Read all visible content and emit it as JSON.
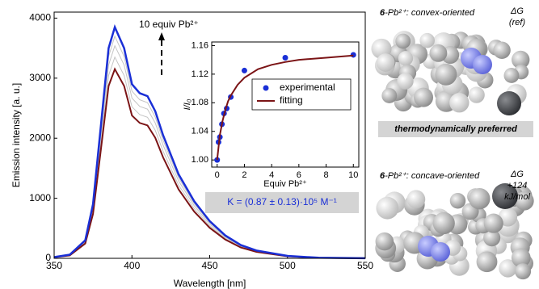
{
  "chart_data": [
    {
      "type": "line",
      "x_label": "Wavelength [nm]",
      "y_label": "Emission intensity [a. u.]",
      "x": [
        350,
        360,
        370,
        375,
        380,
        385,
        389,
        395,
        400,
        405,
        410,
        415,
        420,
        430,
        440,
        450,
        460,
        470,
        480,
        500,
        520,
        550
      ],
      "series": [
        {
          "color": "#c4c4c4",
          "values": [
            17,
            52,
            261,
            783,
            1914,
            3045,
            3350,
            3045,
            2523,
            2393,
            2349,
            2132,
            1784,
            1218,
            827,
            539,
            331,
            191,
            113,
            35,
            9,
            2
          ]
        },
        {
          "color": "#c4c4c4",
          "values": [
            18,
            55,
            276,
            828,
            2024,
            3220,
            3540,
            3220,
            2668,
            2530,
            2484,
            2254,
            1886,
            1288,
            874,
            570,
            350,
            202,
            120,
            37,
            9,
            2
          ]
        },
        {
          "color": "#c4c4c4",
          "values": [
            19,
            58,
            288,
            864,
            2112,
            3360,
            3700,
            3360,
            2784,
            2640,
            2592,
            2352,
            1968,
            1344,
            912,
            595,
            365,
            211,
            125,
            38,
            10,
            2
          ]
        },
        {
          "color": "#7b1416",
          "values": [
            16,
            49,
            246,
            738,
            1804,
            2870,
            3150,
            2870,
            2378,
            2255,
            2214,
            2009,
            1681,
            1148,
            779,
            508,
            312,
            180,
            107,
            33,
            8,
            2
          ]
        },
        {
          "color": "#1a2fd6",
          "values": [
            20,
            60,
            300,
            900,
            2200,
            3500,
            3850,
            3500,
            2900,
            2750,
            2700,
            2450,
            2050,
            1400,
            950,
            620,
            380,
            220,
            130,
            40,
            10,
            2
          ]
        }
      ],
      "xlim": [
        350,
        550
      ],
      "xticks": [
        350,
        400,
        450,
        500,
        550
      ],
      "ylim": [
        0,
        4100
      ],
      "yticks": [
        0,
        1000,
        2000,
        3000,
        4000
      ],
      "annotations": [
        "10 equiv Pb²⁺"
      ]
    },
    {
      "type": "scatter",
      "x_label": "Equiv Pb²⁺",
      "y_label": "I/I₀",
      "series": [
        {
          "name": "experimental",
          "color": "#1a2fd6",
          "x": [
            0,
            0.1,
            0.2,
            0.35,
            0.5,
            0.7,
            1,
            2,
            5,
            10
          ],
          "values": [
            1.0,
            1.025,
            1.032,
            1.05,
            1.065,
            1.072,
            1.088,
            1.125,
            1.143,
            1.147
          ]
        },
        {
          "name": "fitting",
          "color": "#7b1416",
          "type": "line",
          "x": [
            0,
            0.2,
            0.4,
            0.6,
            0.8,
            1,
            1.5,
            2,
            3,
            4,
            5,
            6,
            8,
            10
          ],
          "values": [
            1.0,
            1.035,
            1.055,
            1.07,
            1.082,
            1.09,
            1.105,
            1.115,
            1.127,
            1.133,
            1.137,
            1.14,
            1.143,
            1.146
          ]
        }
      ],
      "xlim": [
        -0.4,
        10.4
      ],
      "xticks": [
        0,
        2,
        4,
        6,
        8,
        10
      ],
      "ylim": [
        0.99,
        1.165
      ],
      "yticks": [
        {
          "value": 1,
          "label": "1.00"
        },
        1.04,
        1.08,
        1.12,
        1.16
      ],
      "annotations": [
        "K = (0.87 ± 0.13)·10⁵ M⁻¹"
      ]
    }
  ],
  "panels": [
    {
      "compound": "6",
      "label": "-Pb²⁺: convex-oriented",
      "energy": [
        "ΔG",
        "(ref)"
      ],
      "note": "thermodynamically preferred"
    },
    {
      "compound": "6",
      "label": "-Pb²⁺: concave-oriented",
      "energy": [
        "ΔG",
        "+124",
        "kJ/mol"
      ]
    }
  ]
}
